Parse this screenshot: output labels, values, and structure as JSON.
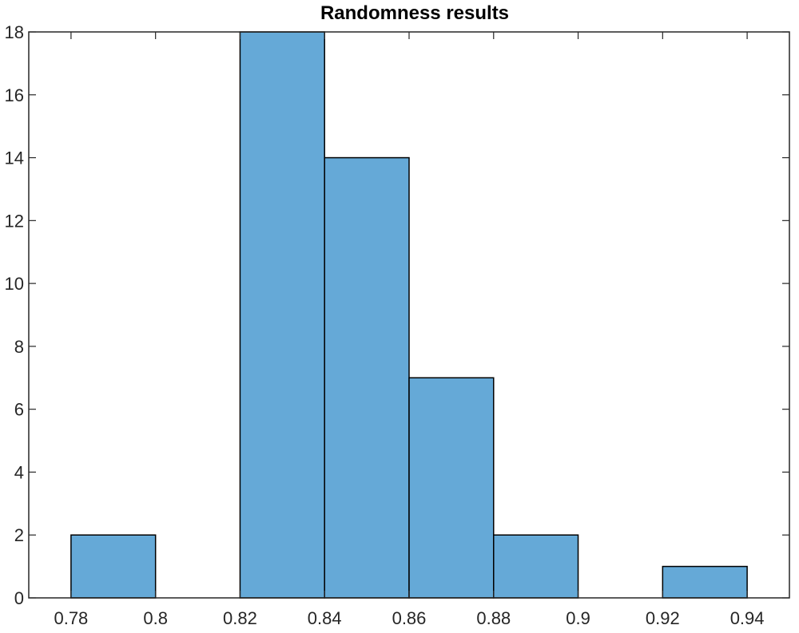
{
  "chart_data": {
    "type": "bar",
    "title": "Randomness results",
    "xlabel": "",
    "ylabel": "",
    "bin_edges": [
      0.78,
      0.8,
      0.82,
      0.84,
      0.86,
      0.88,
      0.9,
      0.92,
      0.94
    ],
    "values": [
      2,
      0,
      18,
      14,
      7,
      2,
      0,
      1
    ],
    "xlim": [
      0.77,
      0.95
    ],
    "ylim": [
      0,
      18
    ],
    "xticks": [
      "0.78",
      "0.8",
      "0.82",
      "0.84",
      "0.86",
      "0.88",
      "0.9",
      "0.92",
      "0.94"
    ],
    "yticks": [
      "0",
      "2",
      "4",
      "6",
      "8",
      "10",
      "12",
      "14",
      "16",
      "18"
    ],
    "bar_color": "#65a9d7",
    "edge_color": "#000000",
    "grid": false,
    "legend": "none"
  }
}
